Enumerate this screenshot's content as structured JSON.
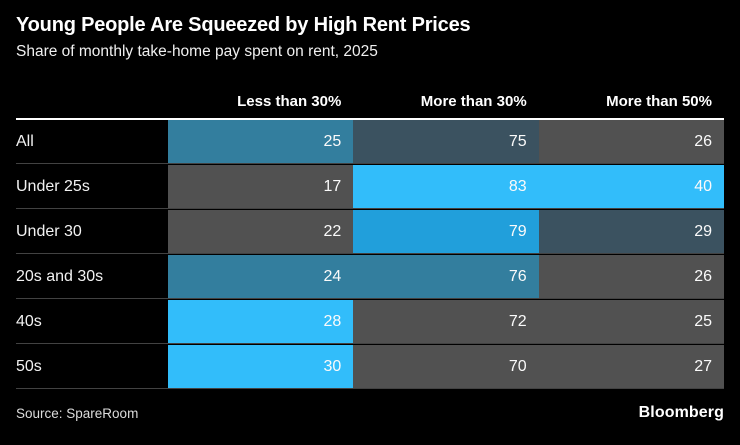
{
  "chart_data": {
    "type": "heatmap",
    "title": "Young People Are Squeezed by High Rent Prices",
    "subtitle": "Share of monthly take-home pay spent on rent, 2025",
    "unit": "%",
    "columns": [
      "Less than 30%",
      "More than 30%",
      "More than 50%"
    ],
    "rows": [
      {
        "label": "All",
        "values": [
          25,
          75,
          26
        ],
        "cell_colors": [
          "#337e9e",
          "#3b5260",
          "#515151"
        ]
      },
      {
        "label": "Under 25s",
        "values": [
          17,
          83,
          40
        ],
        "cell_colors": [
          "#515151",
          "#32bdfa",
          "#32bdfa"
        ]
      },
      {
        "label": "Under 30",
        "values": [
          22,
          79,
          29
        ],
        "cell_colors": [
          "#515151",
          "#219fdb",
          "#3b5260"
        ]
      },
      {
        "label": "20s and 30s",
        "values": [
          24,
          76,
          26
        ],
        "cell_colors": [
          "#337e9e",
          "#337e9e",
          "#515151"
        ]
      },
      {
        "label": "40s",
        "values": [
          28,
          72,
          25
        ],
        "cell_colors": [
          "#32bdfa",
          "#515151",
          "#515151"
        ]
      },
      {
        "label": "50s",
        "values": [
          30,
          70,
          27
        ],
        "cell_colors": [
          "#32bdfa",
          "#515151",
          "#515151"
        ]
      }
    ],
    "palette": {
      "highest": "#32bdfa",
      "high": "#219fdb",
      "medium": "#337e9e",
      "low": "#3b5260",
      "lowest": "#515151",
      "background": "#000000",
      "rule": "#ffffff"
    },
    "legend_position": "none",
    "source": "Source: SpareRoom",
    "brand": "Bloomberg"
  }
}
